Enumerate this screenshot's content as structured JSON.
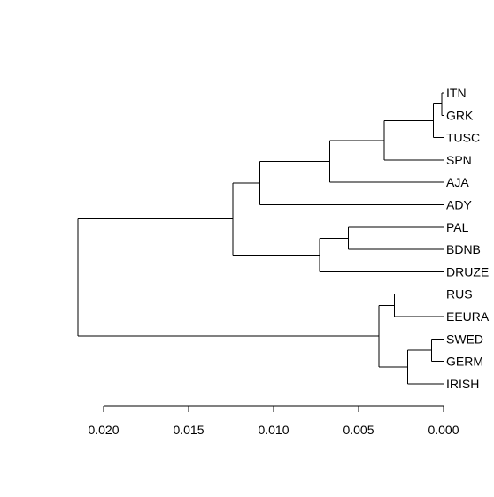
{
  "dendrogram": {
    "colors": {
      "line": "#000000",
      "label": "#000000",
      "background": "#ffffff"
    },
    "leaves": [
      "ITN",
      "GRK",
      "TUSC",
      "SPN",
      "AJA",
      "ADY",
      "PAL",
      "BDNB",
      "DRUZE",
      "RUS",
      "EEURA",
      "SWED",
      "GERM",
      "IRISH"
    ],
    "axis": {
      "ticks": [
        0.02,
        0.015,
        0.01,
        0.005,
        0.0
      ],
      "tick_labels": [
        "0.020",
        "0.015",
        "0.010",
        "0.005",
        "0.000"
      ]
    },
    "merges": [
      {
        "id": "n1",
        "children": [
          "ITN",
          "GRK"
        ],
        "height": 0.0001
      },
      {
        "id": "n2",
        "children": [
          "n1",
          "TUSC"
        ],
        "height": 0.0006
      },
      {
        "id": "n3",
        "children": [
          "n2",
          "SPN"
        ],
        "height": 0.0035
      },
      {
        "id": "n4",
        "children": [
          "n3",
          "AJA"
        ],
        "height": 0.0067
      },
      {
        "id": "n5",
        "children": [
          "n4",
          "ADY"
        ],
        "height": 0.0108
      },
      {
        "id": "n6",
        "children": [
          "PAL",
          "BDNB"
        ],
        "height": 0.0056
      },
      {
        "id": "n7",
        "children": [
          "n6",
          "DRUZE"
        ],
        "height": 0.0073
      },
      {
        "id": "n8",
        "children": [
          "n5",
          "n7"
        ],
        "height": 0.0124
      },
      {
        "id": "n9",
        "children": [
          "RUS",
          "EEURA"
        ],
        "height": 0.0029
      },
      {
        "id": "n10",
        "children": [
          "SWED",
          "GERM"
        ],
        "height": 0.0007
      },
      {
        "id": "n11",
        "children": [
          "n10",
          "IRISH"
        ],
        "height": 0.0021
      },
      {
        "id": "n12",
        "children": [
          "n9",
          "n11"
        ],
        "height": 0.0038
      },
      {
        "id": "n13",
        "children": [
          "n8",
          "n12"
        ],
        "height": 0.0215
      }
    ]
  }
}
